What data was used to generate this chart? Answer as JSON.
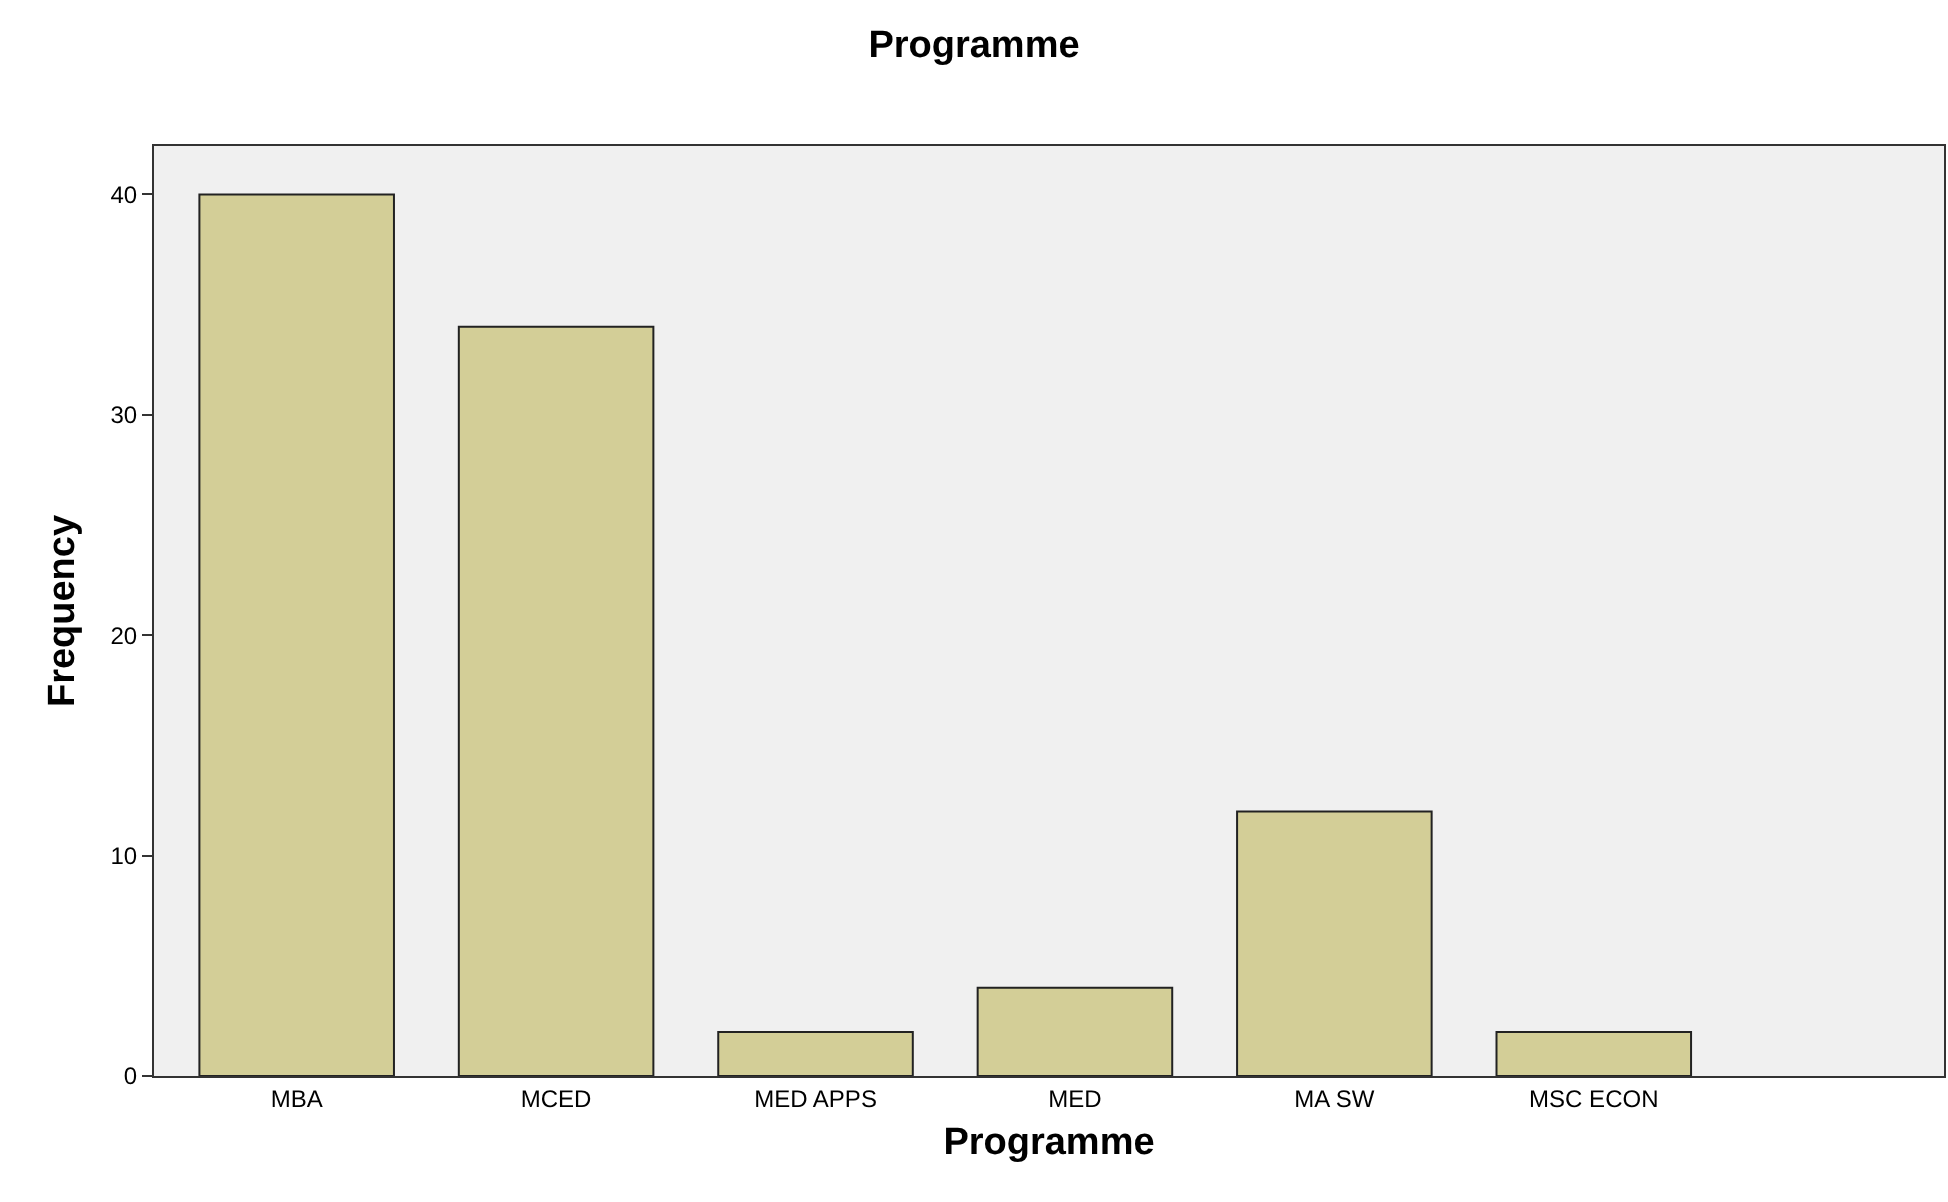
{
  "chart_data": {
    "type": "bar",
    "title": "Programme",
    "xlabel": "Programme",
    "ylabel": "Frequency",
    "categories": [
      "MBA",
      "MCED",
      "MED APPS",
      "MED",
      "MA SW",
      "MSC ECON"
    ],
    "values": [
      40,
      34,
      2,
      4,
      12,
      2
    ],
    "color": "#d3ce97",
    "ylim": [
      0,
      42.2
    ],
    "yticks": [
      0,
      10,
      20,
      30,
      40
    ],
    "grid": false,
    "legend": false
  }
}
